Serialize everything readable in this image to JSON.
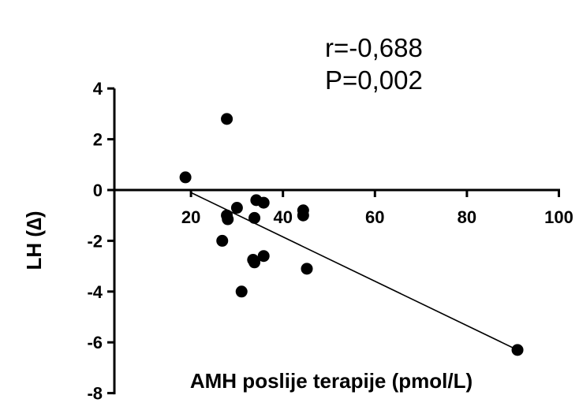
{
  "chart_data": {
    "type": "scatter",
    "xlabel": "AMH poslije terapije (pmol/L)",
    "ylabel": "LH (∆)",
    "xlim": [
      0,
      100
    ],
    "ylim": [
      -8,
      4
    ],
    "x_ticks": [
      20,
      40,
      60,
      80,
      100
    ],
    "y_ticks": [
      4,
      2,
      0,
      -2,
      -4,
      -6,
      -8
    ],
    "x_tick_labels": [
      "20",
      "40",
      "60",
      "80",
      "100"
    ],
    "y_tick_labels": [
      "4",
      "2",
      "0",
      "-2",
      "-4",
      "-6",
      "-8"
    ],
    "annotations": [
      "r=-0,688",
      "P=0,002"
    ],
    "grid": false,
    "points": [
      {
        "x": 18.8,
        "y": 0.5
      },
      {
        "x": 27.8,
        "y": 2.8
      },
      {
        "x": 27.8,
        "y": -1.0
      },
      {
        "x": 28.0,
        "y": -1.15
      },
      {
        "x": 26.8,
        "y": -2.0
      },
      {
        "x": 30.0,
        "y": -0.7
      },
      {
        "x": 34.2,
        "y": -0.4
      },
      {
        "x": 35.8,
        "y": -0.5
      },
      {
        "x": 33.8,
        "y": -1.1
      },
      {
        "x": 33.5,
        "y": -2.75
      },
      {
        "x": 33.8,
        "y": -2.85
      },
      {
        "x": 35.8,
        "y": -2.6
      },
      {
        "x": 31.0,
        "y": -4.0
      },
      {
        "x": 44.4,
        "y": -0.8
      },
      {
        "x": 44.4,
        "y": -1.0
      },
      {
        "x": 45.2,
        "y": -3.1
      },
      {
        "x": 91.0,
        "y": -6.3
      }
    ],
    "regression_line": {
      "x": [
        20,
        91
      ],
      "y": [
        -0.1,
        -6.3
      ]
    }
  }
}
